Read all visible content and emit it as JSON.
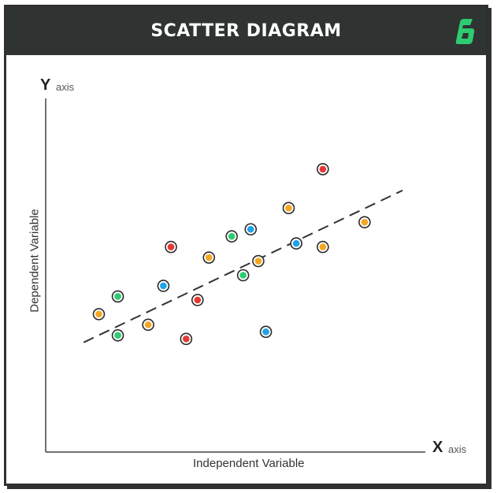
{
  "header": {
    "title": "SCATTER DIAGRAM",
    "logo_icon": "brand-logo-icon",
    "logo_color": "#2ecc71"
  },
  "axes": {
    "y_big": "Y",
    "y_small": "axis",
    "x_big": "X",
    "x_small": "axis",
    "x_title": "Independent Variable",
    "y_title": "Dependent Variable"
  },
  "colors": {
    "header_bg": "#2f3331",
    "orange": "#f5a623",
    "green": "#2ecc71",
    "red": "#e53935",
    "blue": "#1fa3e8"
  },
  "chart_data": {
    "type": "scatter",
    "title": "SCATTER DIAGRAM",
    "xlabel": "Independent Variable",
    "ylabel": "Dependent Variable",
    "xlim": [
      0,
      100
    ],
    "ylim": [
      0,
      100
    ],
    "grid": false,
    "trendline": {
      "x": [
        10,
        94
      ],
      "y": [
        31,
        74
      ]
    },
    "points": [
      {
        "x": 14,
        "y": 39,
        "color": "orange"
      },
      {
        "x": 19,
        "y": 44,
        "color": "green"
      },
      {
        "x": 19,
        "y": 33,
        "color": "green"
      },
      {
        "x": 27,
        "y": 36,
        "color": "orange"
      },
      {
        "x": 31,
        "y": 47,
        "color": "blue"
      },
      {
        "x": 33,
        "y": 58,
        "color": "red"
      },
      {
        "x": 37,
        "y": 32,
        "color": "red"
      },
      {
        "x": 40,
        "y": 43,
        "color": "red"
      },
      {
        "x": 43,
        "y": 55,
        "color": "orange"
      },
      {
        "x": 49,
        "y": 61,
        "color": "green"
      },
      {
        "x": 52,
        "y": 50,
        "color": "green"
      },
      {
        "x": 54,
        "y": 63,
        "color": "blue"
      },
      {
        "x": 56,
        "y": 54,
        "color": "orange"
      },
      {
        "x": 58,
        "y": 34,
        "color": "blue"
      },
      {
        "x": 64,
        "y": 69,
        "color": "orange"
      },
      {
        "x": 66,
        "y": 59,
        "color": "blue"
      },
      {
        "x": 73,
        "y": 80,
        "color": "red"
      },
      {
        "x": 73,
        "y": 58,
        "color": "orange"
      },
      {
        "x": 84,
        "y": 65,
        "color": "orange"
      }
    ]
  }
}
